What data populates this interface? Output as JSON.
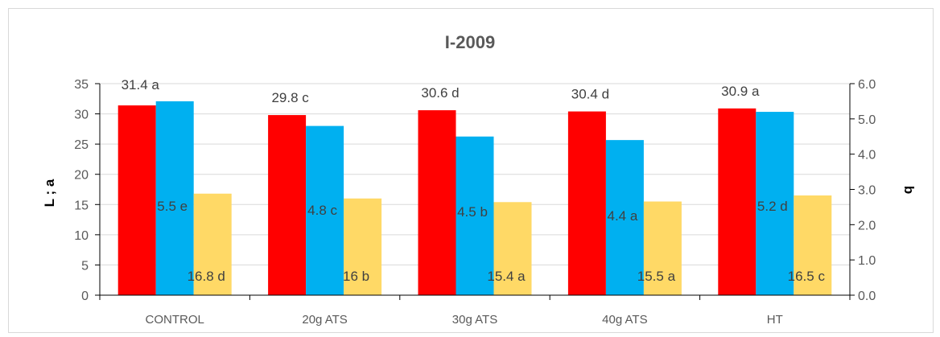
{
  "chart_data": {
    "type": "bar",
    "title": "I-2009",
    "categories": [
      "CONTROL",
      "20g ATS",
      "30g ATS",
      "40g ATS",
      "HT"
    ],
    "ylabel": "L ; a",
    "ylabel_right": "b",
    "ylim": [
      0,
      35
    ],
    "yticks": [
      "0",
      "5",
      "10",
      "15",
      "20",
      "25",
      "30",
      "35"
    ],
    "ylim_right": [
      0,
      6
    ],
    "yticks_right": [
      "0.0",
      "1.0",
      "2.0",
      "3.0",
      "4.0",
      "5.0",
      "6.0"
    ],
    "grid": true,
    "legend": "none",
    "series": [
      {
        "axis": "left",
        "color": "#ff0000",
        "values": [
          31.4,
          29.8,
          30.6,
          30.4,
          30.9
        ],
        "labels": [
          "31.4 a",
          "29.8 c",
          "30.6 d",
          "30.4 d",
          "30.9 a"
        ]
      },
      {
        "axis": "right",
        "color": "#00b0f0",
        "values": [
          5.5,
          4.8,
          4.5,
          4.4,
          5.2
        ],
        "labels": [
          "5.5 e",
          "4.8 c",
          "4.5 b",
          "4.4 a",
          "5.2 d"
        ]
      },
      {
        "axis": "left",
        "color": "#ffd966",
        "values": [
          16.8,
          16,
          15.4,
          15.5,
          16.5
        ],
        "labels": [
          "16.8 d",
          "16 b",
          "15.4 a",
          "15.5 a",
          "16.5 c"
        ]
      }
    ]
  }
}
